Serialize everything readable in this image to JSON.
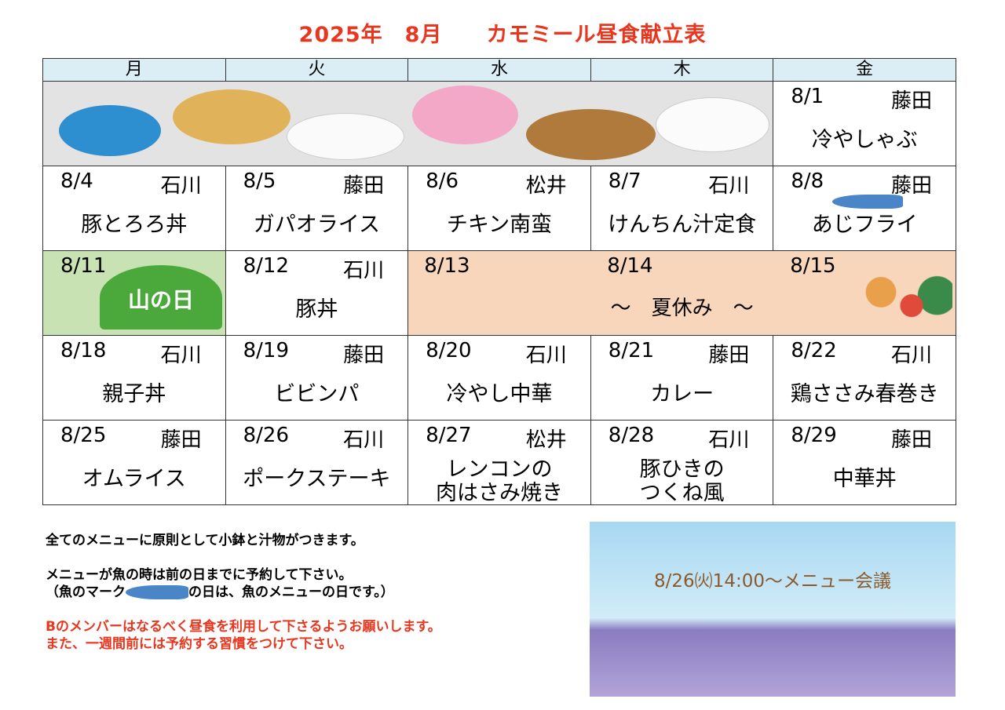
{
  "title": "2025年　8月　　カモミール昼食献立表",
  "weekdays": [
    "月",
    "火",
    "水",
    "木",
    "金"
  ],
  "week1": {
    "fri": {
      "date": "8/1",
      "person": "藤田",
      "menu": "冷やしゃぶ"
    }
  },
  "week2": [
    {
      "date": "8/4",
      "person": "石川",
      "menu": "豚とろろ丼"
    },
    {
      "date": "8/5",
      "person": "藤田",
      "menu": "ガパオライス"
    },
    {
      "date": "8/6",
      "person": "松井",
      "menu": "チキン南蛮"
    },
    {
      "date": "8/7",
      "person": "石川",
      "menu": "けんちん汁定食"
    },
    {
      "date": "8/8",
      "person": "藤田",
      "menu": "あじフライ",
      "fish": true
    }
  ],
  "week3": {
    "mon": {
      "date": "8/11",
      "holiday": "山の日"
    },
    "tue": {
      "date": "8/12",
      "person": "石川",
      "menu": "豚丼"
    },
    "vacation": {
      "dates": [
        "8/13",
        "8/14",
        "8/15"
      ],
      "label": "～　夏休み　～"
    }
  },
  "week4": [
    {
      "date": "8/18",
      "person": "石川",
      "menu": "親子丼"
    },
    {
      "date": "8/19",
      "person": "藤田",
      "menu": "ビビンパ"
    },
    {
      "date": "8/20",
      "person": "石川",
      "menu": "冷やし中華"
    },
    {
      "date": "8/21",
      "person": "藤田",
      "menu": "カレー"
    },
    {
      "date": "8/22",
      "person": "石川",
      "menu": "鶏ささみ春巻き"
    }
  ],
  "week5": [
    {
      "date": "8/25",
      "person": "藤田",
      "menu": "オムライス"
    },
    {
      "date": "8/26",
      "person": "石川",
      "menu": "ポークステーキ"
    },
    {
      "date": "8/27",
      "person": "松井",
      "menu1": "レンコンの",
      "menu2": "肉はさみ焼き"
    },
    {
      "date": "8/28",
      "person": "石川",
      "menu1": "豚ひきの",
      "menu2": "つくね風"
    },
    {
      "date": "8/29",
      "person": "藤田",
      "menu": "中華丼"
    }
  ],
  "notes": {
    "line1": "全てのメニューに原則として小鉢と汁物がつきます。",
    "line2": "メニューが魚の時は前の日までに予約して下さい。",
    "line3a": "（魚のマーク",
    "line3b": "の日は、魚のメニューの日です。）",
    "red1": "Bのメンバーはなるべく昼食を利用して下さるようお願いします。",
    "red2": "また、一週間前には予約する習慣をつけて下さい。"
  },
  "banner": {
    "text": "8/26㈫14:00～メニュー会議"
  },
  "colors": {
    "title": "#e8361f",
    "header": "#dbeef6",
    "vacation": "#f8d6bc",
    "holiday": "#c8e2b4",
    "fish": "#4a85c8"
  }
}
